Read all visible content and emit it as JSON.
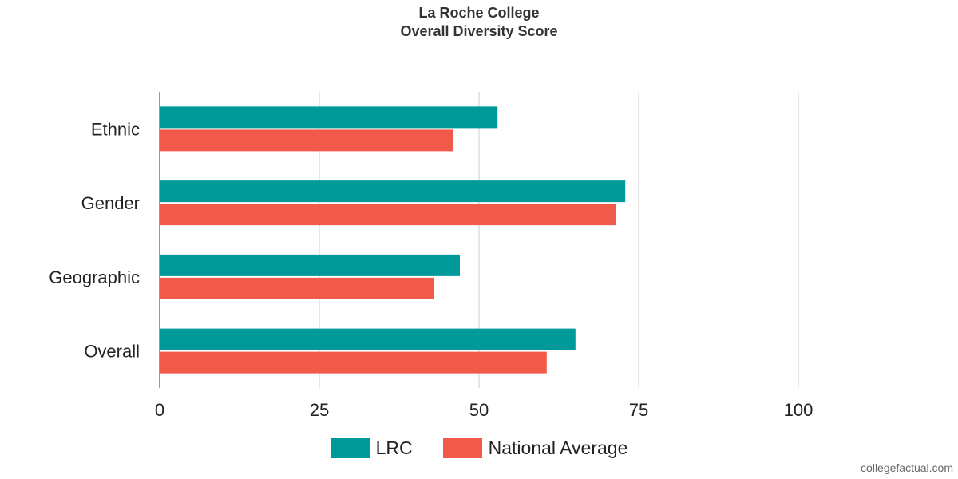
{
  "title": "La Roche College",
  "subtitle": "Overall Diversity Score",
  "legend": {
    "series1_label": "LRC",
    "series2_label": "National Average"
  },
  "colors": {
    "series1": "#009999",
    "series2": "#f15a4b",
    "grid": "#cccccc",
    "axis": "#333333"
  },
  "watermark": "collegefactual.com",
  "chart_data": {
    "type": "bar",
    "orientation": "horizontal",
    "title": "La Roche College",
    "subtitle": "Overall Diversity Score",
    "categories": [
      "Ethnic",
      "Gender",
      "Geographic",
      "Overall"
    ],
    "series": [
      {
        "name": "LRC",
        "values": [
          52.9,
          72.9,
          47.0,
          65.1
        ]
      },
      {
        "name": "National Average",
        "values": [
          45.9,
          71.4,
          43.0,
          60.6
        ]
      }
    ],
    "xlim": [
      0,
      100
    ],
    "xticks": [
      "0",
      "25",
      "50",
      "75",
      "100"
    ],
    "grid": "vertical",
    "legend_position": "bottom"
  }
}
